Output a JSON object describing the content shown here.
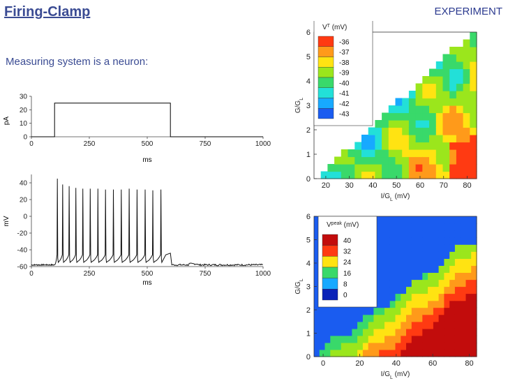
{
  "slide": {
    "title": "Firing-Clamp",
    "tag": "EXPERIMENT",
    "subtitle": "Measuring system is a neuron:"
  },
  "colors": {
    "title": "#3a4b93",
    "trace": "#000000",
    "cmap": [
      "#0a22b8",
      "#1a5cf0",
      "#17a9ff",
      "#22e0d8",
      "#39d96a",
      "#9be61c",
      "#ffe312",
      "#ff9a1a",
      "#ff3a12",
      "#c20c0c"
    ]
  },
  "chart_data": [
    {
      "type": "line",
      "name": "current-step",
      "xlabel": "ms",
      "ylabel": "pA",
      "xlim": [
        0,
        1000
      ],
      "ylim": [
        0,
        30
      ],
      "x_ticks": [
        "0",
        "250",
        "500",
        "750",
        "1000"
      ],
      "y_ticks": [
        "0",
        "10",
        "20",
        "30"
      ],
      "x": [
        0,
        100,
        100,
        600,
        600,
        1000
      ],
      "y": [
        0,
        0,
        25,
        25,
        0,
        0
      ]
    },
    {
      "type": "line",
      "name": "voltage-trace",
      "xlabel": "ms",
      "ylabel": "mV",
      "xlim": [
        0,
        1000
      ],
      "ylim": [
        -60,
        50
      ],
      "x_ticks": [
        "0",
        "250",
        "500",
        "750",
        "1000"
      ],
      "y_ticks": [
        "-60",
        "-40",
        "-20",
        "0",
        "20",
        "40"
      ],
      "rest_mv": -58,
      "spike_times": [
        112,
        135,
        163,
        192,
        222,
        254,
        287,
        320,
        354,
        388,
        422,
        456,
        491,
        524,
        559
      ],
      "spike_peaks": [
        45,
        38,
        36,
        34,
        33,
        33,
        33,
        32,
        32,
        32,
        33,
        32,
        32,
        31,
        32
      ]
    },
    {
      "type": "heatmap",
      "name": "VT-map",
      "xlabel": "I/G",
      "xlabel_sub": "L",
      "xlabel_unit": " (mV)",
      "ylabel": "G/G",
      "ylabel_sub": "L",
      "legend_title": "V",
      "legend_title_sup": "T",
      "legend_unit": " (mV)",
      "x_ticks": [
        20,
        30,
        40,
        50,
        60,
        70,
        80
      ],
      "y_ticks": [
        0,
        1,
        2,
        3,
        4,
        5,
        6
      ],
      "xlim": [
        15,
        84
      ],
      "ylim": [
        0,
        6
      ],
      "legend_values": [
        "-36",
        "-37",
        "-38",
        "-39",
        "-40",
        "-41",
        "-42",
        "-43"
      ]
    },
    {
      "type": "heatmap",
      "name": "Vpeak-map",
      "xlabel": "I/G",
      "xlabel_sub": "L",
      "xlabel_unit": " (mV)",
      "ylabel": "G/G",
      "ylabel_sub": "L",
      "legend_title": "V",
      "legend_title_sup": "peak",
      "legend_unit": " (mV)",
      "x_ticks": [
        0,
        20,
        40,
        60,
        80
      ],
      "y_ticks": [
        0,
        1,
        2,
        3,
        4,
        5,
        6
      ],
      "xlim": [
        -5,
        84
      ],
      "ylim": [
        0,
        6
      ],
      "legend_values": [
        "40",
        "32",
        "24",
        "16",
        "8",
        "0"
      ]
    }
  ]
}
